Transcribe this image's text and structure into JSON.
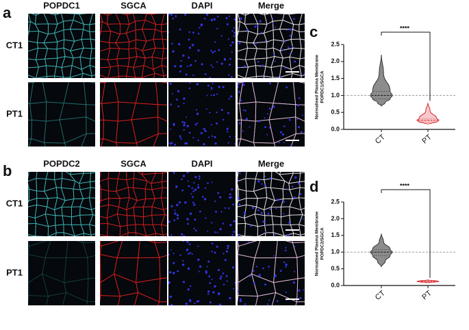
{
  "panels": [
    {
      "label": "a",
      "columns": [
        "POPDC1",
        "SGCA",
        "DAPI",
        "Merge"
      ],
      "rows": [
        "CT1",
        "PT1"
      ]
    },
    {
      "label": "b",
      "columns": [
        "POPDC2",
        "SGCA",
        "DAPI",
        "Merge"
      ],
      "rows": [
        "CT1",
        "PT1"
      ]
    }
  ],
  "chart_data": [
    {
      "type": "violin",
      "panel_label": "c",
      "ylabel": [
        "Normalised Plasma Membrane",
        "POPDC1/SGCA"
      ],
      "categories": [
        "CT",
        "PT"
      ],
      "series": [
        {
          "name": "CT",
          "color": "#8c8c8c",
          "min": 0.68,
          "q1": 0.9,
          "median": 1.0,
          "q3": 1.12,
          "max": 2.2
        },
        {
          "name": "PT",
          "color": "#d62728",
          "min": 0.15,
          "q1": 0.22,
          "median": 0.27,
          "q3": 0.32,
          "max": 0.78
        }
      ],
      "annotation": "****",
      "hline": 1,
      "ylim": [
        0,
        2.5
      ],
      "yticks": [
        {
          "value": 0,
          "label": "0.0"
        },
        0.5,
        {
          "value": 1,
          "label": "1.0"
        },
        1.5,
        {
          "value": 2,
          "label": "2.0"
        },
        2.5
      ]
    },
    {
      "type": "violin",
      "panel_label": "d",
      "ylabel": [
        "Normalised Plasma Membrane",
        "POPDC2/SGCA"
      ],
      "categories": [
        "CT",
        "PT"
      ],
      "series": [
        {
          "name": "CT",
          "color": "#8c8c8c",
          "min": 0.55,
          "q1": 0.9,
          "median": 1.0,
          "q3": 1.08,
          "max": 1.55
        },
        {
          "name": "PT",
          "color": "#d62728",
          "min": 0.08,
          "q1": 0.11,
          "median": 0.12,
          "q3": 0.14,
          "max": 0.17
        }
      ],
      "annotation": "****",
      "hline": 1,
      "ylim": [
        0,
        2.5
      ],
      "yticks": [
        {
          "value": 0,
          "label": "0.0"
        },
        0.5,
        {
          "value": 1,
          "label": "1.0"
        },
        1.5,
        {
          "value": 2,
          "label": "2.0"
        },
        2.5
      ]
    }
  ]
}
